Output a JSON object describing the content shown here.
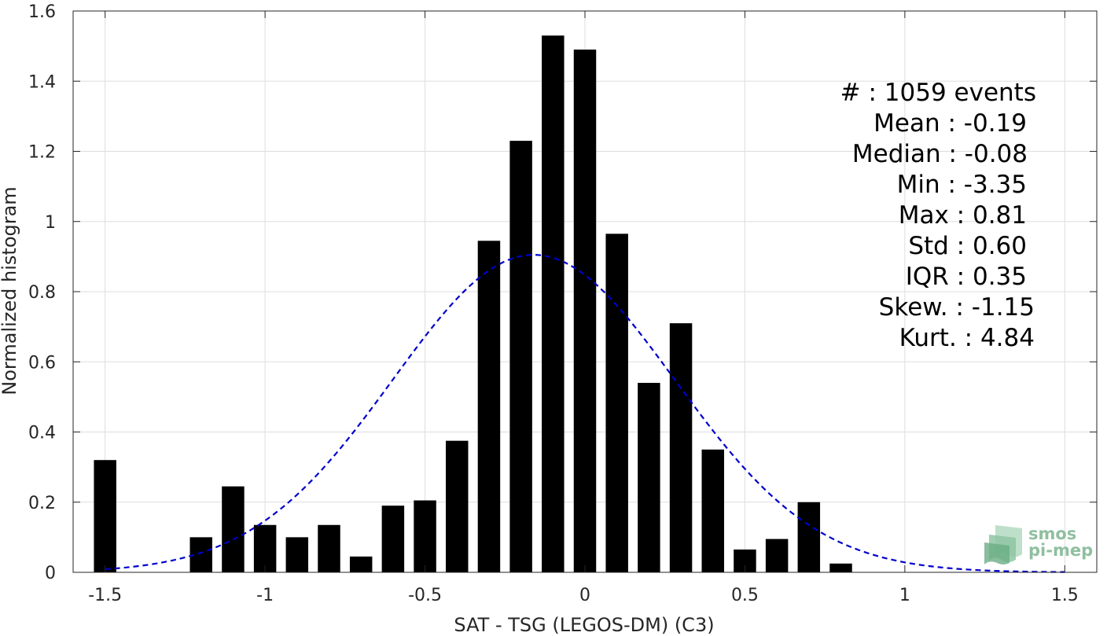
{
  "chart_data": {
    "type": "bar",
    "xlabel": "SAT - TSG (LEGOS-DM) (C3)",
    "ylabel": "Normalized histogram",
    "xlim": [
      -1.6,
      1.6
    ],
    "ylim": [
      0,
      1.6
    ],
    "xticks": [
      -1.5,
      -1,
      -0.5,
      0,
      0.5,
      1,
      1.5
    ],
    "xtick_labels": [
      "-1.5",
      "-1",
      "-0.5",
      "0",
      "0.5",
      "1",
      "1.5"
    ],
    "yticks": [
      0,
      0.2,
      0.4,
      0.6,
      0.8,
      1,
      1.2,
      1.4,
      1.6
    ],
    "ytick_labels": [
      "0",
      "0.2",
      "0.4",
      "0.6",
      "0.8",
      "1",
      "1.2",
      "1.4",
      "1.6"
    ],
    "grid": true,
    "bar_width": 0.07,
    "bar_color": "#000000",
    "bars": [
      {
        "x": -1.5,
        "y": 0.32
      },
      {
        "x": -1.2,
        "y": 0.1
      },
      {
        "x": -1.1,
        "y": 0.245
      },
      {
        "x": -1.0,
        "y": 0.135
      },
      {
        "x": -0.9,
        "y": 0.1
      },
      {
        "x": -0.8,
        "y": 0.135
      },
      {
        "x": -0.7,
        "y": 0.045
      },
      {
        "x": -0.6,
        "y": 0.19
      },
      {
        "x": -0.5,
        "y": 0.205
      },
      {
        "x": -0.4,
        "y": 0.375
      },
      {
        "x": -0.3,
        "y": 0.945
      },
      {
        "x": -0.2,
        "y": 1.23
      },
      {
        "x": -0.1,
        "y": 1.53
      },
      {
        "x": 0.0,
        "y": 1.49
      },
      {
        "x": 0.1,
        "y": 0.965
      },
      {
        "x": 0.2,
        "y": 0.54
      },
      {
        "x": 0.3,
        "y": 0.71
      },
      {
        "x": 0.4,
        "y": 0.35
      },
      {
        "x": 0.5,
        "y": 0.065
      },
      {
        "x": 0.6,
        "y": 0.095
      },
      {
        "x": 0.7,
        "y": 0.2
      },
      {
        "x": 0.8,
        "y": 0.025
      }
    ],
    "fit_curve": {
      "type": "normal",
      "mean": -0.16,
      "peak": 0.905,
      "x_range": [
        -1.5,
        1.5
      ],
      "color": "#0000cc",
      "style": "dashed"
    },
    "annotations": [
      "#  : 1059 events",
      "Mean : -0.19",
      "Median : -0.08",
      "Min : -3.35",
      "Max : 0.81",
      "Std : 0.60",
      "IQR : 0.35",
      "Skew. : -1.15",
      "Kurt. : 4.84"
    ]
  },
  "logo": {
    "line1": "smos",
    "line2": "pi-mep",
    "color": "#8fbf9f"
  }
}
